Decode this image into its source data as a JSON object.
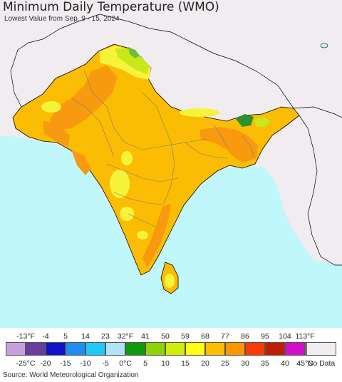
{
  "header": {
    "title": "Minimum Daily Temperature (WMO)",
    "subtitle": "Lowest Value from Sep. 9 - 15, 2024"
  },
  "map": {
    "region": "South Asia",
    "colors": {
      "ocean": "#bff7fb",
      "outside_land": "#f0ecf0",
      "warm_main": "#fbbd03",
      "hot": "#f89a10",
      "cool_yellow": "#f6f43a",
      "chartreuse": "#c8e81a",
      "green": "#6fbe3a",
      "dark_green": "#2f8e2f",
      "boundary": "#7a7a7a",
      "coast": "#000000"
    }
  },
  "legend": {
    "fahrenheit_labels": [
      "-13°F",
      "-4",
      "5",
      "14",
      "23",
      "32°F",
      "41",
      "50",
      "59",
      "68",
      "77",
      "86",
      "95",
      "104",
      "113°F"
    ],
    "celsius_labels": [
      "-25°C",
      "-20",
      "-15",
      "-10",
      "-5",
      "0°C",
      "5",
      "10",
      "15",
      "20",
      "25",
      "30",
      "35",
      "40",
      "45°C"
    ],
    "colors": [
      "#c8a0e0",
      "#6a3c9c",
      "#1212c8",
      "#1e8ef0",
      "#20c8f8",
      "#b0e2f8",
      "#0c9a0c",
      "#8ed208",
      "#d0ec0a",
      "#ffff10",
      "#fcbe04",
      "#fb9604",
      "#f83c04",
      "#c01c04",
      "#d010c8",
      "#f080d0"
    ],
    "no_data_label": "No Data",
    "no_data_color": "#f0ecf0"
  },
  "footer": {
    "source": "Source: World Meteorological Organization"
  }
}
